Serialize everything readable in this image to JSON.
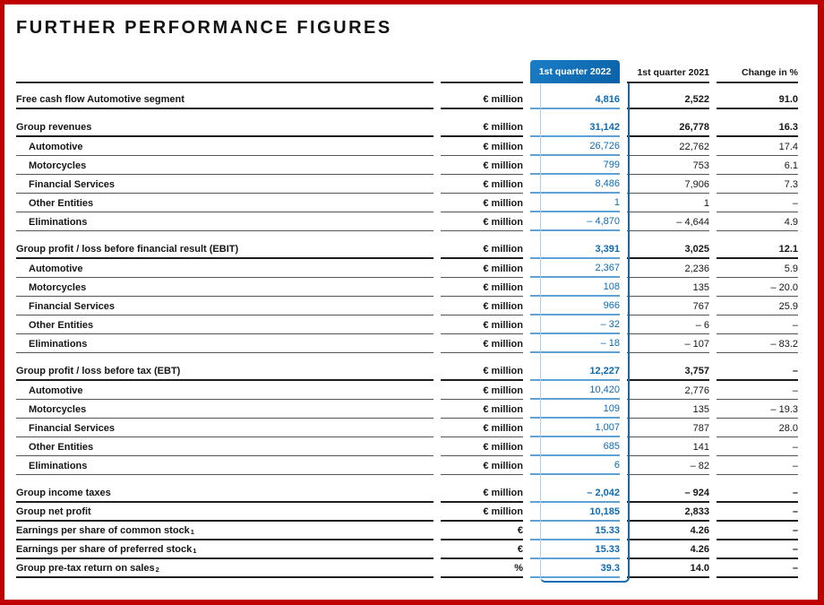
{
  "title": "FURTHER PERFORMANCE FIGURES",
  "colors": {
    "accent_blue": "#0d6bb4",
    "light_blue_rule": "#5fa0d5",
    "frame_red": "#c00000"
  },
  "table": {
    "header": {
      "q2022": "1st quarter 2022",
      "q2021": "1st quarter 2021",
      "change": "Change in %"
    },
    "sections": [
      {
        "rows": [
          {
            "label": "Free cash flow Automotive segment",
            "sup": "",
            "unit": "€ million",
            "q2022": "4,816",
            "q2021": "2,522",
            "change": "91.0",
            "style": "group"
          }
        ]
      },
      {
        "rows": [
          {
            "label": "Group revenues",
            "sup": "",
            "unit": "€ million",
            "q2022": "31,142",
            "q2021": "26,778",
            "change": "16.3",
            "style": "group"
          },
          {
            "label": "Automotive",
            "sup": "",
            "unit": "€ million",
            "q2022": "26,726",
            "q2021": "22,762",
            "change": "17.4",
            "style": "sub"
          },
          {
            "label": "Motorcycles",
            "sup": "",
            "unit": "€ million",
            "q2022": "799",
            "q2021": "753",
            "change": "6.1",
            "style": "sub"
          },
          {
            "label": "Financial Services",
            "sup": "",
            "unit": "€ million",
            "q2022": "8,486",
            "q2021": "7,906",
            "change": "7.3",
            "style": "sub"
          },
          {
            "label": "Other Entities",
            "sup": "",
            "unit": "€ million",
            "q2022": "1",
            "q2021": "1",
            "change": "–",
            "style": "sub"
          },
          {
            "label": "Eliminations",
            "sup": "",
            "unit": "€ million",
            "q2022": "– 4,870",
            "q2021": "– 4,644",
            "change": "4.9",
            "style": "sub"
          }
        ]
      },
      {
        "rows": [
          {
            "label": "Group profit / loss before financial result (EBIT)",
            "sup": "",
            "unit": "€ million",
            "q2022": "3,391",
            "q2021": "3,025",
            "change": "12.1",
            "style": "group"
          },
          {
            "label": "Automotive",
            "sup": "",
            "unit": "€ million",
            "q2022": "2,367",
            "q2021": "2,236",
            "change": "5.9",
            "style": "sub"
          },
          {
            "label": "Motorcycles",
            "sup": "",
            "unit": "€ million",
            "q2022": "108",
            "q2021": "135",
            "change": "– 20.0",
            "style": "sub"
          },
          {
            "label": "Financial Services",
            "sup": "",
            "unit": "€ million",
            "q2022": "966",
            "q2021": "767",
            "change": "25.9",
            "style": "sub"
          },
          {
            "label": "Other Entities",
            "sup": "",
            "unit": "€ million",
            "q2022": "– 32",
            "q2021": "– 6",
            "change": "–",
            "style": "sub"
          },
          {
            "label": "Eliminations",
            "sup": "",
            "unit": "€ million",
            "q2022": "– 18",
            "q2021": "– 107",
            "change": "– 83.2",
            "style": "sub"
          }
        ]
      },
      {
        "rows": [
          {
            "label": "Group profit / loss before tax (EBT)",
            "sup": "",
            "unit": "€ million",
            "q2022": "12,227",
            "q2021": "3,757",
            "change": "–",
            "style": "group"
          },
          {
            "label": "Automotive",
            "sup": "",
            "unit": "€ million",
            "q2022": "10,420",
            "q2021": "2,776",
            "change": "–",
            "style": "sub"
          },
          {
            "label": "Motorcycles",
            "sup": "",
            "unit": "€ million",
            "q2022": "109",
            "q2021": "135",
            "change": "– 19.3",
            "style": "sub"
          },
          {
            "label": "Financial Services",
            "sup": "",
            "unit": "€ million",
            "q2022": "1,007",
            "q2021": "787",
            "change": "28.0",
            "style": "sub"
          },
          {
            "label": "Other Entities",
            "sup": "",
            "unit": "€ million",
            "q2022": "685",
            "q2021": "141",
            "change": "–",
            "style": "sub"
          },
          {
            "label": "Eliminations",
            "sup": "",
            "unit": "€ million",
            "q2022": "6",
            "q2021": "– 82",
            "change": "–",
            "style": "sub"
          }
        ]
      },
      {
        "rows": [
          {
            "label": "Group income taxes",
            "sup": "",
            "unit": "€ million",
            "q2022": "– 2,042",
            "q2021": "– 924",
            "change": "–",
            "style": "group"
          },
          {
            "label": "Group net profit",
            "sup": "",
            "unit": "€ million",
            "q2022": "10,185",
            "q2021": "2,833",
            "change": "–",
            "style": "group"
          },
          {
            "label": "Earnings per share of common stock",
            "sup": "1",
            "unit": "€",
            "q2022": "15.33",
            "q2021": "4.26",
            "change": "–",
            "style": "group"
          },
          {
            "label": "Earnings per share of preferred stock",
            "sup": "1",
            "unit": "€",
            "q2022": "15.33",
            "q2021": "4.26",
            "change": "–",
            "style": "group"
          },
          {
            "label": "Group pre-tax return on sales",
            "sup": "2",
            "unit": "%",
            "q2022": "39.3",
            "q2021": "14.0",
            "change": "–",
            "style": "group"
          }
        ]
      }
    ]
  }
}
